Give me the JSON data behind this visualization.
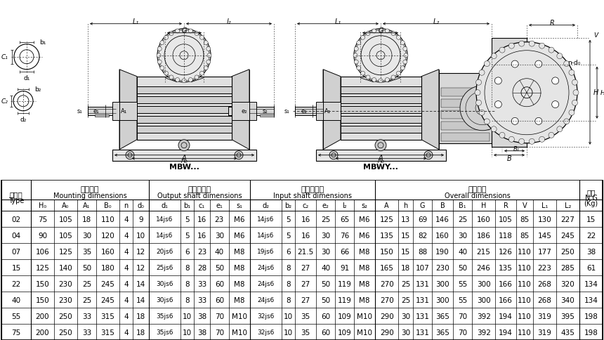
{
  "rows": [
    [
      "02",
      "75",
      "105",
      "18",
      "110",
      "4",
      "9",
      "14js6",
      "5",
      "16",
      "23",
      "M6",
      "14js6",
      "5",
      "16",
      "25",
      "65",
      "M6",
      "125",
      "13",
      "69",
      "146",
      "25",
      "160",
      "105",
      "85",
      "130",
      "227",
      "15"
    ],
    [
      "04",
      "90",
      "105",
      "30",
      "120",
      "4",
      "10",
      "14js6",
      "5",
      "16",
      "30",
      "M6",
      "14js6",
      "5",
      "16",
      "30",
      "76",
      "M6",
      "135",
      "15",
      "82",
      "160",
      "30",
      "186",
      "118",
      "85",
      "145",
      "245",
      "22"
    ],
    [
      "07",
      "106",
      "125",
      "35",
      "160",
      "4",
      "12",
      "20js6",
      "6",
      "23",
      "40",
      "M8",
      "19js6",
      "6",
      "21.5",
      "30",
      "66",
      "M8",
      "150",
      "15",
      "88",
      "190",
      "40",
      "215",
      "126",
      "110",
      "177",
      "250",
      "38"
    ],
    [
      "15",
      "125",
      "140",
      "50",
      "180",
      "4",
      "12",
      "25js6",
      "8",
      "28",
      "50",
      "M8",
      "24js6",
      "8",
      "27",
      "40",
      "91",
      "M8",
      "165",
      "18",
      "107",
      "230",
      "50",
      "246",
      "135",
      "110",
      "223",
      "285",
      "61"
    ],
    [
      "22",
      "150",
      "230",
      "25",
      "245",
      "4",
      "14",
      "30js6",
      "8",
      "33",
      "60",
      "M8",
      "24js6",
      "8",
      "27",
      "50",
      "119",
      "M8",
      "270",
      "25",
      "131",
      "300",
      "55",
      "300",
      "166",
      "110",
      "268",
      "320",
      "134"
    ],
    [
      "40",
      "150",
      "230",
      "25",
      "245",
      "4",
      "14",
      "30js6",
      "8",
      "33",
      "60",
      "M8",
      "24js6",
      "8",
      "27",
      "50",
      "119",
      "M8",
      "270",
      "25",
      "131",
      "300",
      "55",
      "300",
      "166",
      "110",
      "268",
      "340",
      "134"
    ],
    [
      "55",
      "200",
      "250",
      "33",
      "315",
      "4",
      "18",
      "35js6",
      "10",
      "38",
      "70",
      "M10",
      "32js6",
      "10",
      "35",
      "60",
      "109",
      "M10",
      "290",
      "30",
      "131",
      "365",
      "70",
      "392",
      "194",
      "110",
      "319",
      "395",
      "198"
    ],
    [
      "75",
      "200",
      "250",
      "33",
      "315",
      "4",
      "18",
      "35js6",
      "10",
      "38",
      "70",
      "M10",
      "32js6",
      "10",
      "35",
      "60",
      "109",
      "M10",
      "290",
      "30",
      "131",
      "365",
      "70",
      "392",
      "194",
      "110",
      "319",
      "435",
      "198"
    ]
  ],
  "bg_color": "#ffffff"
}
